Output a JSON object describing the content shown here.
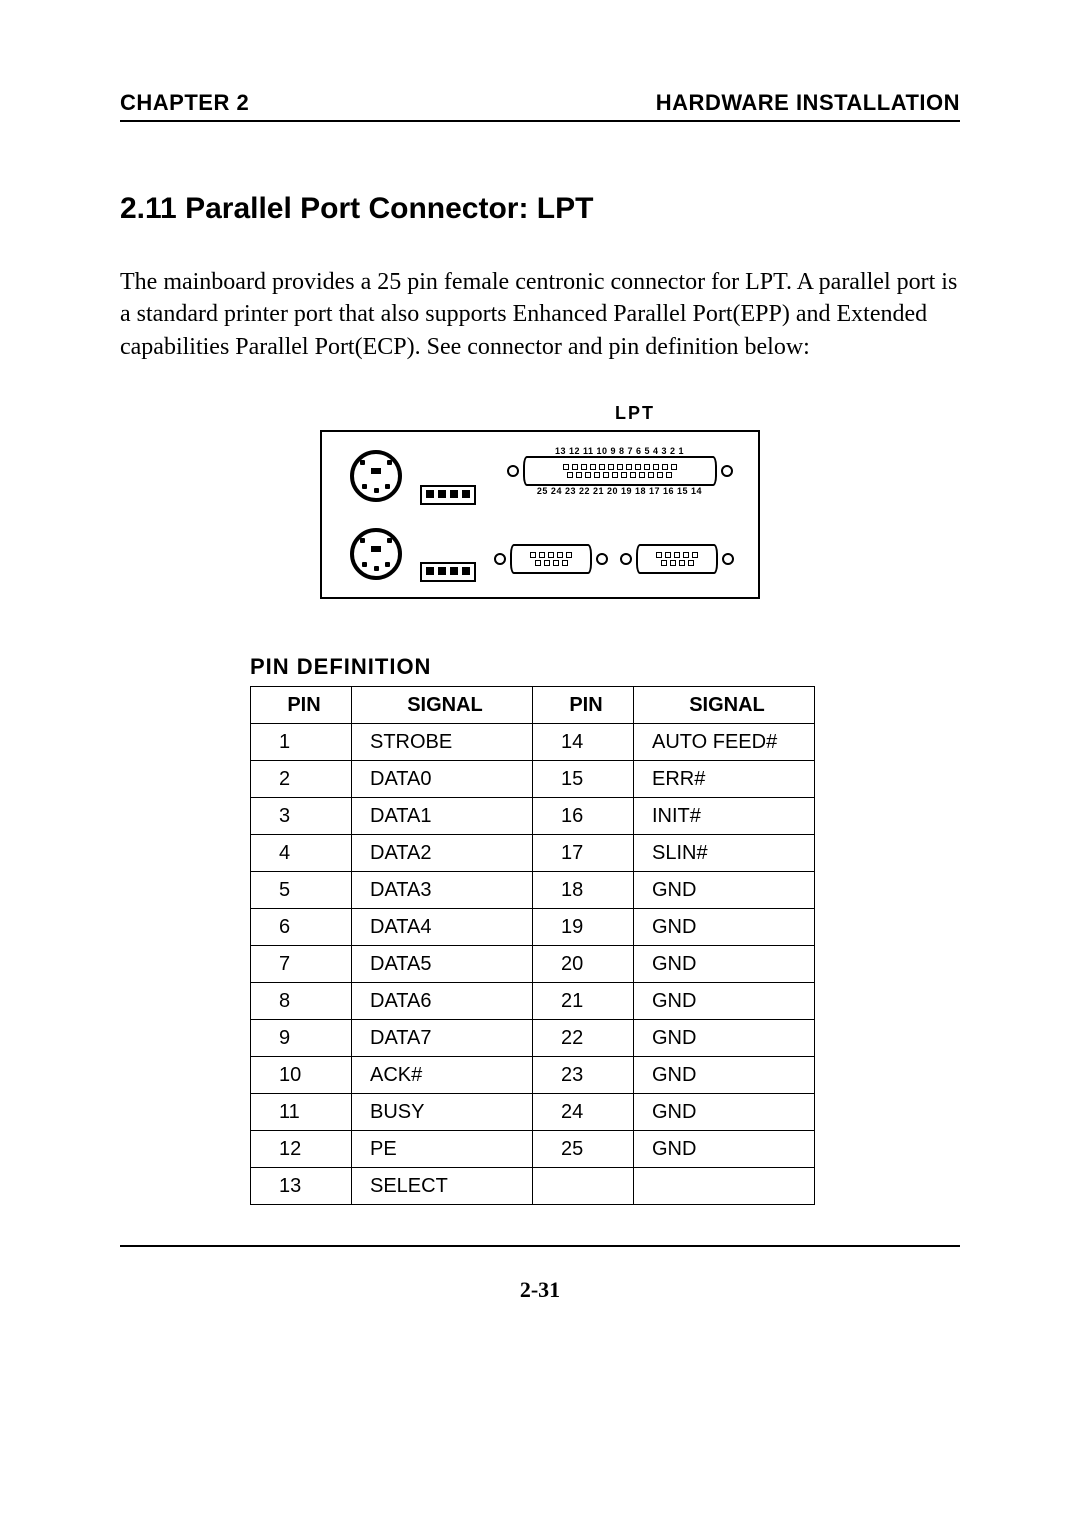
{
  "header": {
    "left": "CHAPTER 2",
    "right": "HARDWARE INSTALLATION"
  },
  "section": {
    "title": "2.11  Parallel Port Connector: LPT",
    "paragraph": "The mainboard provides a 25 pin female centronic connector for LPT.  A parallel port is a standard printer port that also supports Enhanced Parallel Port(EPP) and Extended capabilities Parallel Port(ECP).  See connector and pin definition below:"
  },
  "diagram": {
    "label": "LPT",
    "top_numbers": "13 12 11 10 9  8  7  6  5  4  3  2  1",
    "bottom_numbers": "25 24 23 22 21 20 19 18 17 16 15 14"
  },
  "table": {
    "title": "PIN  DEFINITION",
    "headers": [
      "PIN",
      "SIGNAL",
      "PIN",
      "SIGNAL"
    ],
    "rows": [
      [
        "1",
        "STROBE",
        "14",
        "AUTO FEED#"
      ],
      [
        "2",
        "DATA0",
        "15",
        "ERR#"
      ],
      [
        "3",
        "DATA1",
        "16",
        "INIT#"
      ],
      [
        "4",
        "DATA2",
        "17",
        "SLIN#"
      ],
      [
        "5",
        "DATA3",
        "18",
        "GND"
      ],
      [
        "6",
        "DATA4",
        "19",
        "GND"
      ],
      [
        "7",
        "DATA5",
        "20",
        "GND"
      ],
      [
        "8",
        "DATA6",
        "21",
        "GND"
      ],
      [
        "9",
        "DATA7",
        "22",
        "GND"
      ],
      [
        "10",
        "ACK#",
        "23",
        "GND"
      ],
      [
        "11",
        "BUSY",
        "24",
        "GND"
      ],
      [
        "12",
        "PE",
        "25",
        "GND"
      ],
      [
        "13",
        "SELECT",
        "",
        ""
      ]
    ]
  },
  "footer": {
    "page": "2-31"
  }
}
